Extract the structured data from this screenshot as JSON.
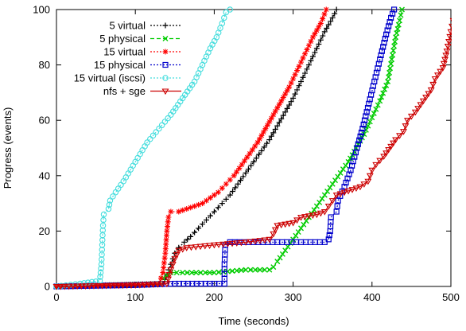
{
  "chart_data": {
    "type": "line",
    "title": "",
    "xlabel": "Time (seconds)",
    "ylabel": "Progress (events)",
    "xlim": [
      0,
      500
    ],
    "ylim": [
      0,
      100
    ],
    "xticks": [
      0,
      100,
      200,
      300,
      400,
      500
    ],
    "yticks": [
      0,
      20,
      40,
      60,
      80,
      100
    ],
    "grid": false,
    "legend_position": "top-left",
    "series": [
      {
        "name": "5 virtual",
        "color": "#000000",
        "dash": "dotted",
        "marker": "plus",
        "points": [
          [
            0,
            0
          ],
          [
            135,
            1
          ],
          [
            140,
            4
          ],
          [
            145,
            8
          ],
          [
            150,
            12
          ],
          [
            155,
            14
          ],
          [
            162,
            16
          ],
          [
            170,
            18
          ],
          [
            180,
            21
          ],
          [
            190,
            24
          ],
          [
            200,
            27
          ],
          [
            210,
            30
          ],
          [
            220,
            33
          ],
          [
            230,
            37
          ],
          [
            240,
            41
          ],
          [
            250,
            45
          ],
          [
            260,
            49
          ],
          [
            270,
            53
          ],
          [
            280,
            58
          ],
          [
            290,
            63
          ],
          [
            300,
            68
          ],
          [
            310,
            74
          ],
          [
            320,
            80
          ],
          [
            330,
            86
          ],
          [
            340,
            92
          ],
          [
            350,
            97
          ],
          [
            355,
            100
          ]
        ]
      },
      {
        "name": "5 physical",
        "color": "#00cc00",
        "dash": "dashed",
        "marker": "x",
        "points": [
          [
            0,
            0
          ],
          [
            130,
            1
          ],
          [
            135,
            3
          ],
          [
            140,
            4
          ],
          [
            145,
            5
          ],
          [
            160,
            5
          ],
          [
            200,
            5
          ],
          [
            240,
            6
          ],
          [
            270,
            6
          ],
          [
            275,
            7
          ],
          [
            280,
            9
          ],
          [
            290,
            13
          ],
          [
            300,
            17
          ],
          [
            310,
            21
          ],
          [
            320,
            25
          ],
          [
            330,
            29
          ],
          [
            340,
            33
          ],
          [
            350,
            37
          ],
          [
            360,
            41
          ],
          [
            370,
            45
          ],
          [
            380,
            50
          ],
          [
            390,
            55
          ],
          [
            400,
            61
          ],
          [
            410,
            67
          ],
          [
            420,
            74
          ],
          [
            425,
            82
          ],
          [
            430,
            90
          ],
          [
            435,
            96
          ],
          [
            438,
            100
          ]
        ]
      },
      {
        "name": "15 virtual",
        "color": "#ff0000",
        "dash": "dotted",
        "marker": "star",
        "points": [
          [
            0,
            0
          ],
          [
            130,
            1
          ],
          [
            135,
            5
          ],
          [
            138,
            12
          ],
          [
            140,
            20
          ],
          [
            142,
            25
          ],
          [
            145,
            27
          ],
          [
            155,
            27
          ],
          [
            165,
            28
          ],
          [
            175,
            29
          ],
          [
            185,
            30
          ],
          [
            195,
            32
          ],
          [
            205,
            34
          ],
          [
            215,
            37
          ],
          [
            225,
            40
          ],
          [
            235,
            44
          ],
          [
            245,
            48
          ],
          [
            255,
            52
          ],
          [
            265,
            57
          ],
          [
            275,
            62
          ],
          [
            285,
            67
          ],
          [
            295,
            72
          ],
          [
            305,
            78
          ],
          [
            315,
            84
          ],
          [
            325,
            90
          ],
          [
            335,
            95
          ],
          [
            342,
            100
          ]
        ]
      },
      {
        "name": "15 physical",
        "color": "#0000cc",
        "dash": "dotted",
        "marker": "square",
        "points": [
          [
            0,
            0
          ],
          [
            100,
            0.5
          ],
          [
            150,
            1
          ],
          [
            200,
            1
          ],
          [
            213,
            1
          ],
          [
            213,
            8
          ],
          [
            214,
            15
          ],
          [
            220,
            16
          ],
          [
            250,
            16
          ],
          [
            280,
            16
          ],
          [
            310,
            16
          ],
          [
            340,
            16
          ],
          [
            345,
            17
          ],
          [
            347,
            20
          ],
          [
            348,
            25
          ],
          [
            355,
            27
          ],
          [
            357,
            31
          ],
          [
            365,
            36
          ],
          [
            373,
            42
          ],
          [
            381,
            50
          ],
          [
            388,
            57
          ],
          [
            396,
            66
          ],
          [
            403,
            74
          ],
          [
            410,
            82
          ],
          [
            418,
            91
          ],
          [
            424,
            97
          ],
          [
            428,
            100
          ]
        ]
      },
      {
        "name": "15 virtual (iscsi)",
        "color": "#44dddd",
        "dash": "dotted",
        "marker": "circle",
        "points": [
          [
            0,
            0
          ],
          [
            30,
            1
          ],
          [
            55,
            2
          ],
          [
            57,
            8
          ],
          [
            58,
            15
          ],
          [
            59,
            22
          ],
          [
            60,
            26
          ],
          [
            66,
            28
          ],
          [
            68,
            31
          ],
          [
            75,
            34
          ],
          [
            85,
            38
          ],
          [
            100,
            45
          ],
          [
            115,
            52
          ],
          [
            130,
            57
          ],
          [
            145,
            62
          ],
          [
            160,
            68
          ],
          [
            175,
            74
          ],
          [
            185,
            80
          ],
          [
            195,
            86
          ],
          [
            203,
            90
          ],
          [
            210,
            95
          ],
          [
            215,
            99
          ],
          [
            220,
            100
          ]
        ]
      },
      {
        "name": "nfs + sge",
        "color": "#cc0000",
        "dash": "solid",
        "marker": "triangle-down",
        "points": [
          [
            0,
            0
          ],
          [
            100,
            0.5
          ],
          [
            140,
            1
          ],
          [
            145,
            6
          ],
          [
            150,
            10
          ],
          [
            155,
            13
          ],
          [
            165,
            14
          ],
          [
            200,
            15
          ],
          [
            240,
            16
          ],
          [
            270,
            17
          ],
          [
            275,
            19
          ],
          [
            280,
            22
          ],
          [
            300,
            23
          ],
          [
            310,
            25
          ],
          [
            330,
            26
          ],
          [
            340,
            27
          ],
          [
            345,
            29
          ],
          [
            350,
            31
          ],
          [
            355,
            33
          ],
          [
            365,
            34
          ],
          [
            385,
            36
          ],
          [
            395,
            38
          ],
          [
            400,
            42
          ],
          [
            405,
            44
          ],
          [
            415,
            47
          ],
          [
            430,
            53
          ],
          [
            440,
            56
          ],
          [
            445,
            60
          ],
          [
            455,
            63
          ],
          [
            465,
            67
          ],
          [
            475,
            71
          ],
          [
            480,
            75
          ],
          [
            490,
            79
          ],
          [
            495,
            85
          ],
          [
            500,
            92
          ],
          [
            503,
            96
          ]
        ]
      }
    ]
  }
}
